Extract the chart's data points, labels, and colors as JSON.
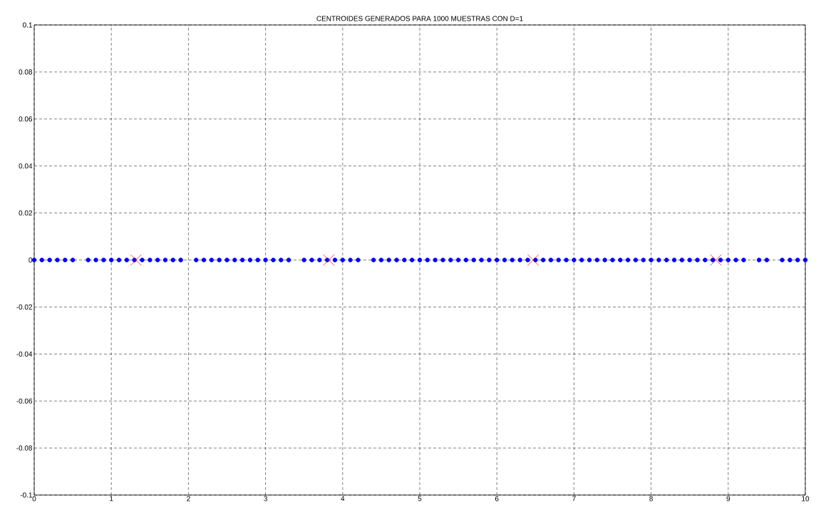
{
  "chart_data": {
    "type": "scatter",
    "title": "CENTROIDES GENERADOS PARA 1000 MUESTRAS CON D=1",
    "xlim": [
      0,
      10
    ],
    "ylim": [
      -0.1,
      0.1
    ],
    "xticks": [
      0,
      1,
      2,
      3,
      4,
      5,
      6,
      7,
      8,
      9,
      10
    ],
    "yticks": [
      -0.1,
      -0.08,
      -0.06,
      -0.04,
      -0.02,
      0,
      0.02,
      0.04,
      0.06,
      0.08,
      0.1
    ],
    "grid": true,
    "series": [
      {
        "color": "#0000ff",
        "marker": "circle",
        "x": [
          0,
          0.1,
          0.2,
          0.3,
          0.4,
          0.5,
          0.7,
          0.8,
          0.9,
          1,
          1.1,
          1.2,
          1.3,
          1.4,
          1.5,
          1.6,
          1.7,
          1.8,
          1.9,
          2.1,
          2.2,
          2.3,
          2.4,
          2.5,
          2.6,
          2.7,
          2.8,
          2.9,
          3,
          3.1,
          3.2,
          3.3,
          3.5,
          3.6,
          3.7,
          3.8,
          3.9,
          4,
          4.1,
          4.2,
          4.4,
          4.5,
          4.6,
          4.7,
          4.8,
          4.9,
          5,
          5.1,
          5.2,
          5.3,
          5.4,
          5.5,
          5.6,
          5.7,
          5.8,
          5.9,
          6,
          6.1,
          6.2,
          6.3,
          6.4,
          6.5,
          6.6,
          6.7,
          6.8,
          6.9,
          7,
          7.1,
          7.2,
          7.3,
          7.4,
          7.5,
          7.6,
          7.7,
          7.8,
          7.9,
          8,
          8.1,
          8.2,
          8.3,
          8.4,
          8.5,
          8.6,
          8.7,
          8.8,
          8.9,
          9,
          9.1,
          9.2,
          9.4,
          9.5,
          9.7,
          9.8,
          9.9,
          10
        ],
        "values": [
          0,
          0,
          0,
          0,
          0,
          0,
          0,
          0,
          0,
          0,
          0,
          0,
          0,
          0,
          0,
          0,
          0,
          0,
          0,
          0,
          0,
          0,
          0,
          0,
          0,
          0,
          0,
          0,
          0,
          0,
          0,
          0,
          0,
          0,
          0,
          0,
          0,
          0,
          0,
          0,
          0,
          0,
          0,
          0,
          0,
          0,
          0,
          0,
          0,
          0,
          0,
          0,
          0,
          0,
          0,
          0,
          0,
          0,
          0,
          0,
          0,
          0,
          0,
          0,
          0,
          0,
          0,
          0,
          0,
          0,
          0,
          0,
          0,
          0,
          0,
          0,
          0,
          0,
          0,
          0,
          0,
          0,
          0,
          0,
          0,
          0,
          0,
          0,
          0,
          0,
          0,
          0,
          0,
          0,
          0
        ]
      },
      {
        "color": "#ff0000",
        "marker": "cross",
        "x": [
          1.32,
          3.82,
          6.47,
          8.84
        ],
        "values": [
          0,
          0,
          0,
          0
        ]
      }
    ]
  }
}
